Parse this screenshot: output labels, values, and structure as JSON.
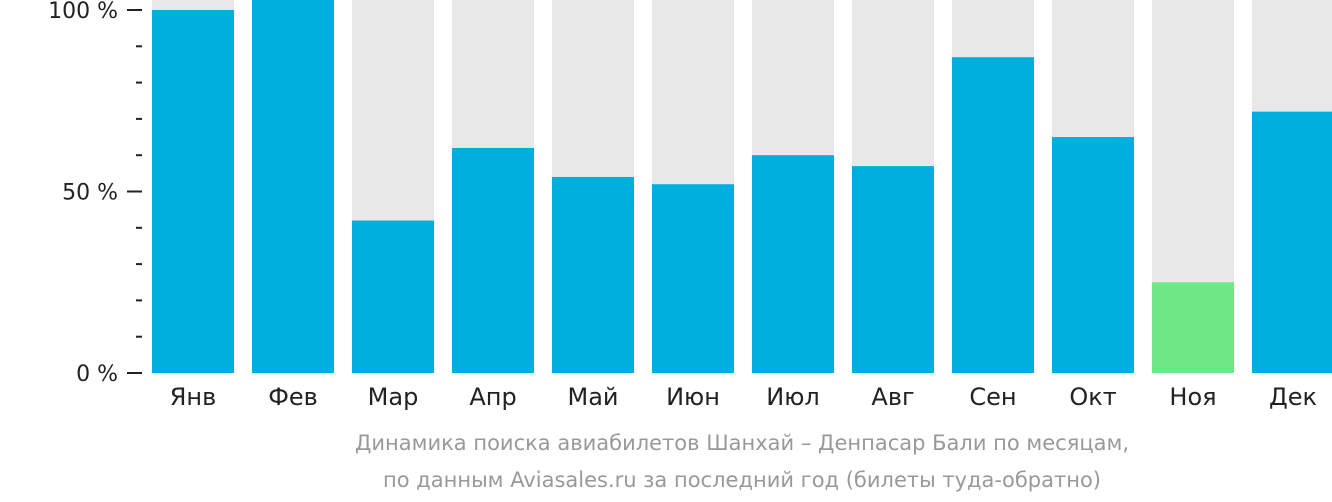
{
  "chart_data": {
    "type": "bar",
    "categories": [
      "Янв",
      "Фев",
      "Мар",
      "Апр",
      "Май",
      "Июн",
      "Июл",
      "Авг",
      "Сен",
      "Окт",
      "Ноя",
      "Дек"
    ],
    "values": [
      100,
      104,
      42,
      62,
      54,
      52,
      60,
      57,
      87,
      65,
      25,
      72
    ],
    "ylim": [
      0,
      100
    ],
    "yticks": [
      "0 %",
      "50 %",
      "100 %"
    ],
    "highlight_category": "Ноя",
    "colors": {
      "bar": "#00afdc",
      "highlight": "#6de884",
      "track": "#e8e8e8",
      "axis": "#222222"
    },
    "caption_line1": "Динамика поиска авиабилетов Шанхай – Денпасар Бали по месяцам,",
    "caption_line2": "по данным Aviasales.ru за последний год (билеты туда-обратно)"
  }
}
